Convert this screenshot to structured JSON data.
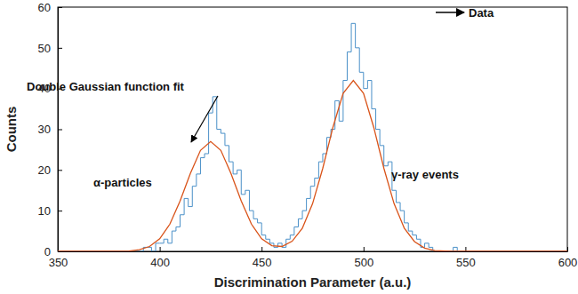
{
  "chart_data": {
    "type": "histogram",
    "x_label": "Discrimination Parameter (a.u.)",
    "y_label": "Counts",
    "bins": [
      388,
      390,
      392,
      394,
      396,
      398,
      400,
      402,
      404,
      406,
      408,
      410,
      412,
      414,
      416,
      418,
      420,
      422,
      424,
      426,
      428,
      430,
      432,
      434,
      436,
      438,
      440,
      442,
      444,
      446,
      448,
      450,
      452,
      454,
      456,
      458,
      460,
      462,
      464,
      466,
      468,
      470,
      472,
      474,
      476,
      478,
      480,
      482,
      484,
      486,
      488,
      490,
      492,
      494,
      496,
      498,
      500,
      502,
      504,
      506,
      508,
      510,
      512,
      514,
      516,
      518,
      520,
      522,
      524,
      526,
      528,
      530,
      532,
      534,
      536,
      538,
      540,
      542,
      544,
      546
    ],
    "counts": [
      0,
      0,
      1,
      1,
      0,
      2,
      2,
      3,
      2,
      5,
      6,
      9,
      13,
      11,
      16,
      19,
      23,
      24,
      34,
      38,
      30,
      29,
      26,
      22,
      19,
      20,
      14,
      15,
      10,
      8,
      7,
      4,
      3,
      2,
      1,
      2,
      1,
      3,
      4,
      6,
      8,
      10,
      13,
      16,
      18,
      22,
      24,
      28,
      30,
      37,
      32,
      42,
      49,
      56,
      50,
      44,
      40,
      42,
      35,
      30,
      26,
      21,
      22,
      15,
      12,
      10,
      7,
      5,
      4,
      3,
      1,
      2,
      1,
      0,
      0,
      0,
      0,
      0,
      1
    ],
    "color": "#4a90c8",
    "fit": {
      "type": "line",
      "color": "#d95319",
      "x": [
        350,
        355,
        360,
        365,
        370,
        375,
        380,
        385,
        390,
        395,
        400,
        405,
        410,
        415,
        420,
        425,
        430,
        435,
        440,
        445,
        450,
        455,
        460,
        465,
        470,
        475,
        480,
        485,
        490,
        495,
        500,
        505,
        510,
        515,
        520,
        525,
        530,
        535,
        540,
        545,
        550,
        555,
        560,
        565,
        570,
        575,
        580,
        585,
        590,
        595,
        600
      ],
      "values": [
        0,
        0,
        0,
        0,
        0,
        0,
        0,
        0.1,
        0.4,
        1.2,
        3.1,
        6.7,
        12.4,
        19.1,
        24.8,
        27,
        24.8,
        19.1,
        12.4,
        6.7,
        3.1,
        1.4,
        1.2,
        2.5,
        5.7,
        11.7,
        20.4,
        30.5,
        38.8,
        42,
        38.8,
        30.5,
        20.4,
        11.7,
        5.7,
        2.4,
        0.8,
        0.2,
        0.1,
        0,
        0,
        0,
        0,
        0,
        0,
        0,
        0,
        0,
        0,
        0,
        0
      ]
    },
    "annotations": [
      {
        "text": "Data"
      },
      {
        "text": "Double Gaussian function fit"
      },
      {
        "text": "α-particles"
      },
      {
        "text": "γ-ray events"
      }
    ],
    "xlim": [
      350,
      600
    ],
    "xticks": [
      350,
      400,
      450,
      500,
      550,
      600
    ],
    "ylim": [
      0,
      60
    ],
    "yticks": [
      0,
      10,
      20,
      30,
      40,
      50,
      60
    ]
  }
}
